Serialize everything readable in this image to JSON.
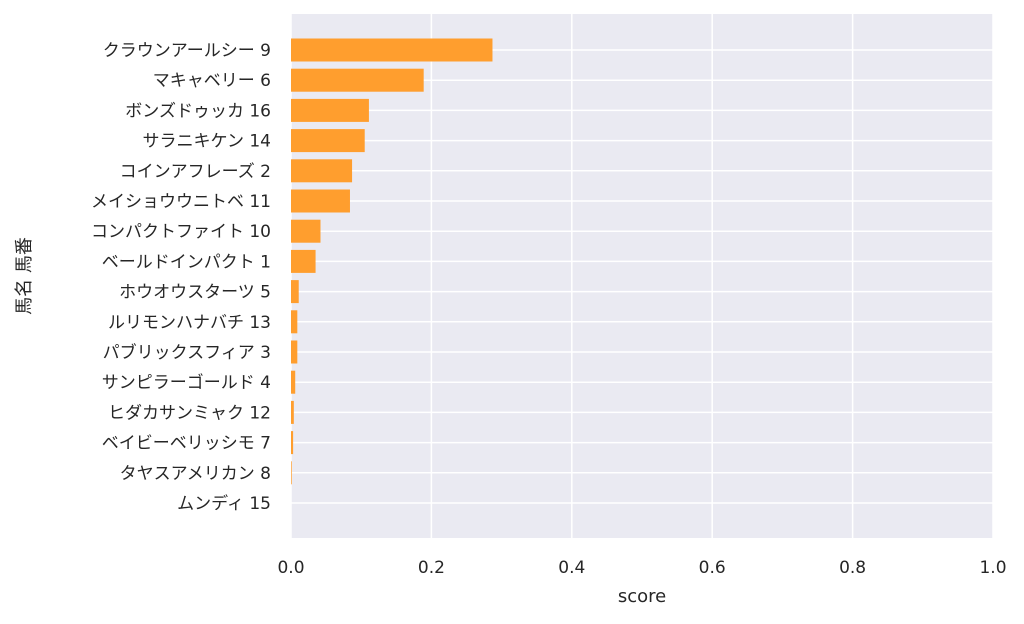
{
  "chart_data": {
    "type": "bar",
    "orientation": "horizontal",
    "categories": [
      "クラウンアールシー 9",
      "マキャベリー 6",
      "ボンズドゥッカ 16",
      "サラニキケン 14",
      "コインアフレーズ 2",
      "メイショウウニトベ 11",
      "コンパクトファイト 10",
      "ベールドインパクト 1",
      "ホウオウスターツ 5",
      "ルリモンハナバチ 13",
      "パブリックスフィア 3",
      "サンピラーゴールド 4",
      "ヒダカサンミャク 12",
      "ベイビーベリッシモ 7",
      "タヤスアメリカン 8",
      "ムンディ 15"
    ],
    "values": [
      0.287,
      0.189,
      0.111,
      0.105,
      0.087,
      0.084,
      0.042,
      0.035,
      0.011,
      0.009,
      0.009,
      0.006,
      0.004,
      0.003,
      0.001,
      0.0
    ],
    "xlabel": "score",
    "ylabel": "馬名 馬番",
    "xlim": [
      0,
      1
    ],
    "xticks": [
      "0.0",
      "0.2",
      "0.4",
      "0.6",
      "0.8",
      "1.0"
    ],
    "grid": true,
    "colors": {
      "bar": "#ff9e2e",
      "plot_background": "#eaeaf2",
      "grid": "#ffffff",
      "text": "#262626"
    }
  }
}
